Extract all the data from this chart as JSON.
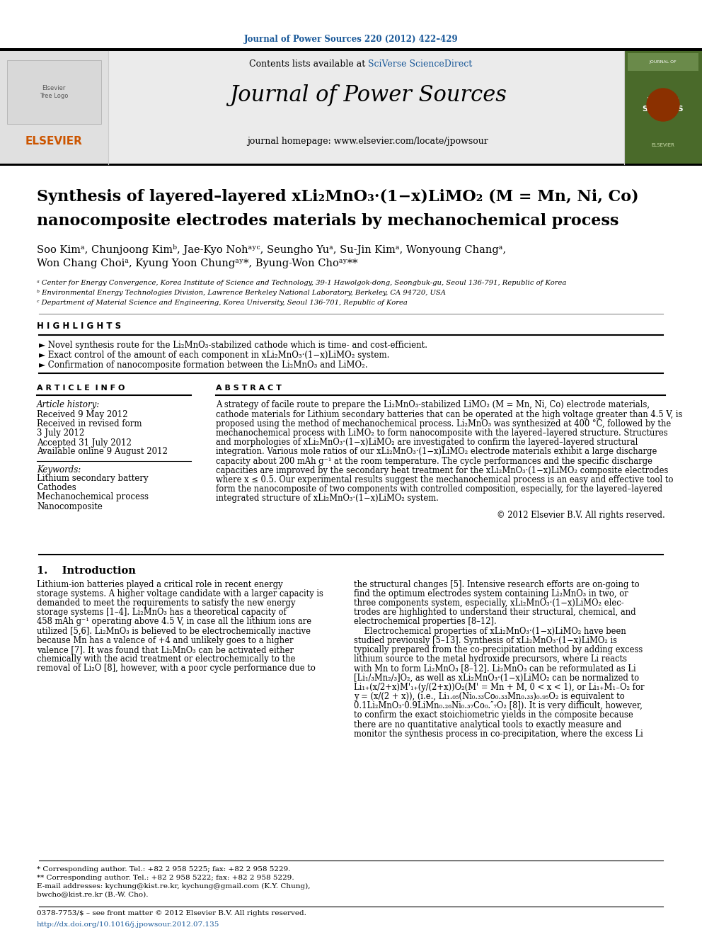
{
  "journal_ref": "Journal of Power Sources 220 (2012) 422–429",
  "contents_line": "Contents lists available at SciVerse ScienceDirect",
  "journal_name": "Journal of Power Sources",
  "journal_homepage": "journal homepage: www.elsevier.com/locate/jpowsour",
  "title_line1": "Synthesis of layered–layered xLi₂MnO₃·(1−x)LiMO₂ (M = Mn, Ni, Co)",
  "title_line2": "nanocomposite electrodes materials by mechanochemical process",
  "authors": "Soo Kimᵃ, Chunjoong Kimᵇ, Jae-Kyo Nohᵃʸᶜ, Seungho Yuᵃ, Su-Jin Kimᵃ, Wonyoung Changᵃ,",
  "authors2": "Won Chang Choiᵃ, Kyung Yoon Chungᵃʸ*, Byung-Won Choᵃʸ**",
  "affil_a": "ᵃ Center for Energy Convergence, Korea Institute of Science and Technology, 39-1 Hawolgok-dong, Seongbuk-gu, Seoul 136-791, Republic of Korea",
  "affil_b": "ᵇ Environmental Energy Technologies Division, Lawrence Berkeley National Laboratory, Berkeley, CA 94720, USA",
  "affil_c": "ᶜ Department of Material Science and Engineering, Korea University, Seoul 136-701, Republic of Korea",
  "highlights_title": "H I G H L I G H T S",
  "highlight1": "► Novel synthesis route for the Li₂MnO₃-stabilized cathode which is time- and cost-efficient.",
  "highlight2": "► Exact control of the amount of each component in xLi₂MnO₃·(1−x)LiMO₂ system.",
  "highlight3": "► Confirmation of nanocomposite formation between the Li₂MnO₃ and LiMO₂.",
  "article_info_title": "A R T I C L E  I N F O",
  "abstract_title": "A B S T R A C T",
  "article_history_label": "Article history:",
  "received": "Received 9 May 2012",
  "received_revised": "Received in revised form",
  "revised_date": "3 July 2012",
  "accepted": "Accepted 31 July 2012",
  "available": "Available online 9 August 2012",
  "keywords_label": "Keywords:",
  "kw1": "Lithium secondary battery",
  "kw2": "Cathodes",
  "kw3": "Mechanochemical process",
  "kw4": "Nanocomposite",
  "copyright": "© 2012 Elsevier B.V. All rights reserved.",
  "intro_title": "1.    Introduction",
  "footnote1": "* Corresponding author. Tel.: +82 2 958 5225; fax: +82 2 958 5229.",
  "footnote2": "** Corresponding author. Tel.: +82 2 958 5222; fax: +82 2 958 5229.",
  "footnote3": "E-mail addresses: kychung@kist.re.kr, kychung@gmail.com (K.Y. Chung),",
  "footnote4": "bwcho@kist.re.kr (B.-W. Cho).",
  "issn_line": "0378-7753/$ – see front matter © 2012 Elsevier B.V. All rights reserved.",
  "doi_line": "http://dx.doi.org/10.1016/j.jpowsour.2012.07.135",
  "bg_color": "#ffffff",
  "blue_color": "#1a5999",
  "orange_color": "#cc5500",
  "abstract_lines": [
    "A strategy of facile route to prepare the Li₂MnO₃-stabilized LiMO₂ (M = Mn, Ni, Co) electrode materials,",
    "cathode materials for Lithium secondary batteries that can be operated at the high voltage greater than 4.5 V, is",
    "proposed using the method of mechanochemical process. Li₂MnO₃ was synthesized at 400 °C, followed by the",
    "mechanochemical process with LiMO₂ to form nanocomposite with the layered–layered structure. Structures",
    "and morphologies of xLi₂MnO₃·(1−x)LiMO₂ are investigated to confirm the layered–layered structural",
    "integration. Various mole ratios of our xLi₂MnO₃·(1−x)LiMO₂ electrode materials exhibit a large discharge",
    "capacity about 200 mAh g⁻¹ at the room temperature. The cycle performances and the specific discharge",
    "capacities are improved by the secondary heat treatment for the xLi₂MnO₃·(1−x)LiMO₂ composite electrodes",
    "where x ≤ 0.5. Our experimental results suggest the mechanochemical process is an easy and effective tool to",
    "form the nanocomposite of two components with controlled composition, especially, for the layered–layered",
    "integrated structure of xLi₂MnO₃·(1−x)LiMO₂ system."
  ],
  "intro_col1_lines": [
    "Lithium-ion batteries played a critical role in recent energy",
    "storage systems. A higher voltage candidate with a larger capacity is",
    "demanded to meet the requirements to satisfy the new energy",
    "storage systems [1–4]. Li₂MnO₃ has a theoretical capacity of",
    "458 mAh g⁻¹ operating above 4.5 V, in case all the lithium ions are",
    "utilized [5,6]. Li₂MnO₃ is believed to be electrochemically inactive",
    "because Mn has a valence of +4 and unlikely goes to a higher",
    "valence [7]. It was found that Li₂MnO₃ can be activated either",
    "chemically with the acid treatment or electrochemically to the",
    "removal of Li₂O [8], however, with a poor cycle performance due to"
  ],
  "intro_col2_lines": [
    "the structural changes [5]. Intensive research efforts are on-going to",
    "find the optimum electrodes system containing Li₂MnO₃ in two, or",
    "three components system, especially, xLi₂MnO₃·(1−x)LiMO₂ elec-",
    "trodes are highlighted to understand their structural, chemical, and",
    "electrochemical properties [8–12].",
    "    Electrochemical properties of xLi₂MnO₃·(1−x)LiMO₂ have been",
    "studied previously [5–13]. Synthesis of xLi₂MnO₃·(1−x)LiMO₂ is",
    "typically prepared from the co-precipitation method by adding excess",
    "lithium source to the metal hydroxide precursors, where Li reacts",
    "with Mn to form Li₂MnO₃ [8–12]. Li₂MnO₃ can be reformulated as Li",
    "[Li₁/₃Mn₂/₃]O₂, as well as xLi₂MnO₃·(1−x)LiMO₂ can be normalized to",
    "Li₁₊(x/2+x)M'₁₊(y/(2+x))O₂(M' = Mn + M, 0 < x < 1), or Li₁₊M₁₋O₂ for",
    "y = (x/(2 + x)), (i.e., Li₁.₀₅(Ni₀.₃₃Co₀.₃₃Mn₀.₃₃)₀.₉₅O₂ is equivalent to",
    "0.1Li₂MnO₃·0.9LiMn₀.₂₆Ni₀.₃₇Co₀.″₇O₂ [8]). It is very difficult, however,",
    "to confirm the exact stoichiometric yields in the composite because",
    "there are no quantitative analytical tools to exactly measure and",
    "monitor the synthesis process in co-precipitation, where the excess Li"
  ]
}
